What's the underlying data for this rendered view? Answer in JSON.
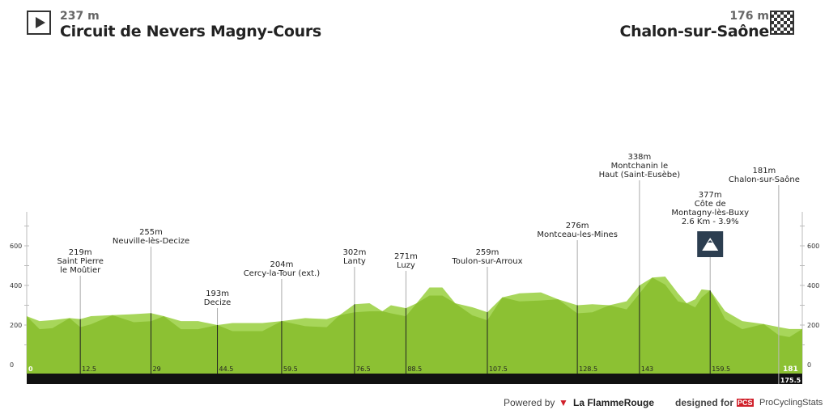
{
  "start": {
    "altitude": "237 m",
    "name": "Circuit de Nevers Magny-Cours",
    "icon": "play-icon"
  },
  "finish": {
    "altitude": "176 m",
    "name": "Chalon-sur-Saône",
    "icon": "checkered-flag-icon"
  },
  "chart_data": {
    "type": "area",
    "xlim": [
      0,
      181
    ],
    "ylim": [
      0,
      750
    ],
    "yticks": [
      0,
      200,
      400,
      600
    ],
    "colors": {
      "fill": "#8cc133",
      "fill_light": "#a7d65a",
      "bar": "#111111"
    },
    "profile": [
      [
        0,
        245
      ],
      [
        3,
        220
      ],
      [
        6,
        225
      ],
      [
        10,
        235
      ],
      [
        12.5,
        230
      ],
      [
        15,
        245
      ],
      [
        20,
        250
      ],
      [
        25,
        255
      ],
      [
        29,
        260
      ],
      [
        32,
        245
      ],
      [
        36,
        220
      ],
      [
        40,
        220
      ],
      [
        44.5,
        200
      ],
      [
        48,
        210
      ],
      [
        55,
        210
      ],
      [
        59.5,
        220
      ],
      [
        65,
        235
      ],
      [
        70,
        230
      ],
      [
        73,
        250
      ],
      [
        76.5,
        305
      ],
      [
        80,
        310
      ],
      [
        83,
        270
      ],
      [
        85,
        300
      ],
      [
        88.5,
        285
      ],
      [
        91,
        310
      ],
      [
        94,
        390
      ],
      [
        97,
        390
      ],
      [
        100,
        310
      ],
      [
        104,
        290
      ],
      [
        107.5,
        265
      ],
      [
        111,
        340
      ],
      [
        115,
        360
      ],
      [
        120,
        365
      ],
      [
        124,
        330
      ],
      [
        128.5,
        300
      ],
      [
        132,
        305
      ],
      [
        136,
        300
      ],
      [
        140,
        320
      ],
      [
        143,
        400
      ],
      [
        146,
        440
      ],
      [
        149,
        445
      ],
      [
        152,
        360
      ],
      [
        154,
        310
      ],
      [
        156,
        330
      ],
      [
        157.5,
        380
      ],
      [
        159.5,
        375
      ],
      [
        163,
        270
      ],
      [
        167,
        220
      ],
      [
        172,
        205
      ],
      [
        175.5,
        190
      ],
      [
        178,
        180
      ],
      [
        181,
        180
      ]
    ],
    "markers": [
      {
        "km": 12.5,
        "label": "12.5",
        "lines": [
          "219m",
          "Saint Pierre",
          "le Moûtier"
        ]
      },
      {
        "km": 29,
        "label": "29",
        "lines": [
          "255m",
          "Neuville-lès-Decize"
        ]
      },
      {
        "km": 44.5,
        "label": "44.5",
        "lines": [
          "193m",
          "Decize"
        ]
      },
      {
        "km": 59.5,
        "label": "59.5",
        "lines": [
          "204m",
          "Cercy-la-Tour (ext.)"
        ]
      },
      {
        "km": 76.5,
        "label": "76.5",
        "lines": [
          "302m",
          "Lanty"
        ]
      },
      {
        "km": 88.5,
        "label": "88.5",
        "lines": [
          "271m",
          "Luzy"
        ]
      },
      {
        "km": 107.5,
        "label": "107.5",
        "lines": [
          "259m",
          "Toulon-sur-Arroux"
        ]
      },
      {
        "km": 128.5,
        "label": "128.5",
        "lines": [
          "276m",
          "Montceau-les-Mines"
        ]
      },
      {
        "km": 143,
        "label": "143",
        "lines": [
          "338m",
          "Montchanin le",
          "Haut (Saint-Eusèbe)"
        ]
      },
      {
        "km": 159.5,
        "label": "159.5",
        "lines": [
          "377m",
          "Côte de",
          "Montagny-lès-Buxy",
          "2.6 Km - 3.9%"
        ],
        "climb": true
      },
      {
        "km": 175.5,
        "label": "175.5",
        "lines": [
          "181m",
          "Chalon-sur-Saône"
        ]
      }
    ],
    "start_km_label": "0",
    "total_km_label": "181"
  },
  "footer": {
    "powered": "Powered by",
    "brand1": "La FlammeRouge",
    "designed": "designed for",
    "pcs": "PCS",
    "brand2": "ProCyclingStats"
  }
}
